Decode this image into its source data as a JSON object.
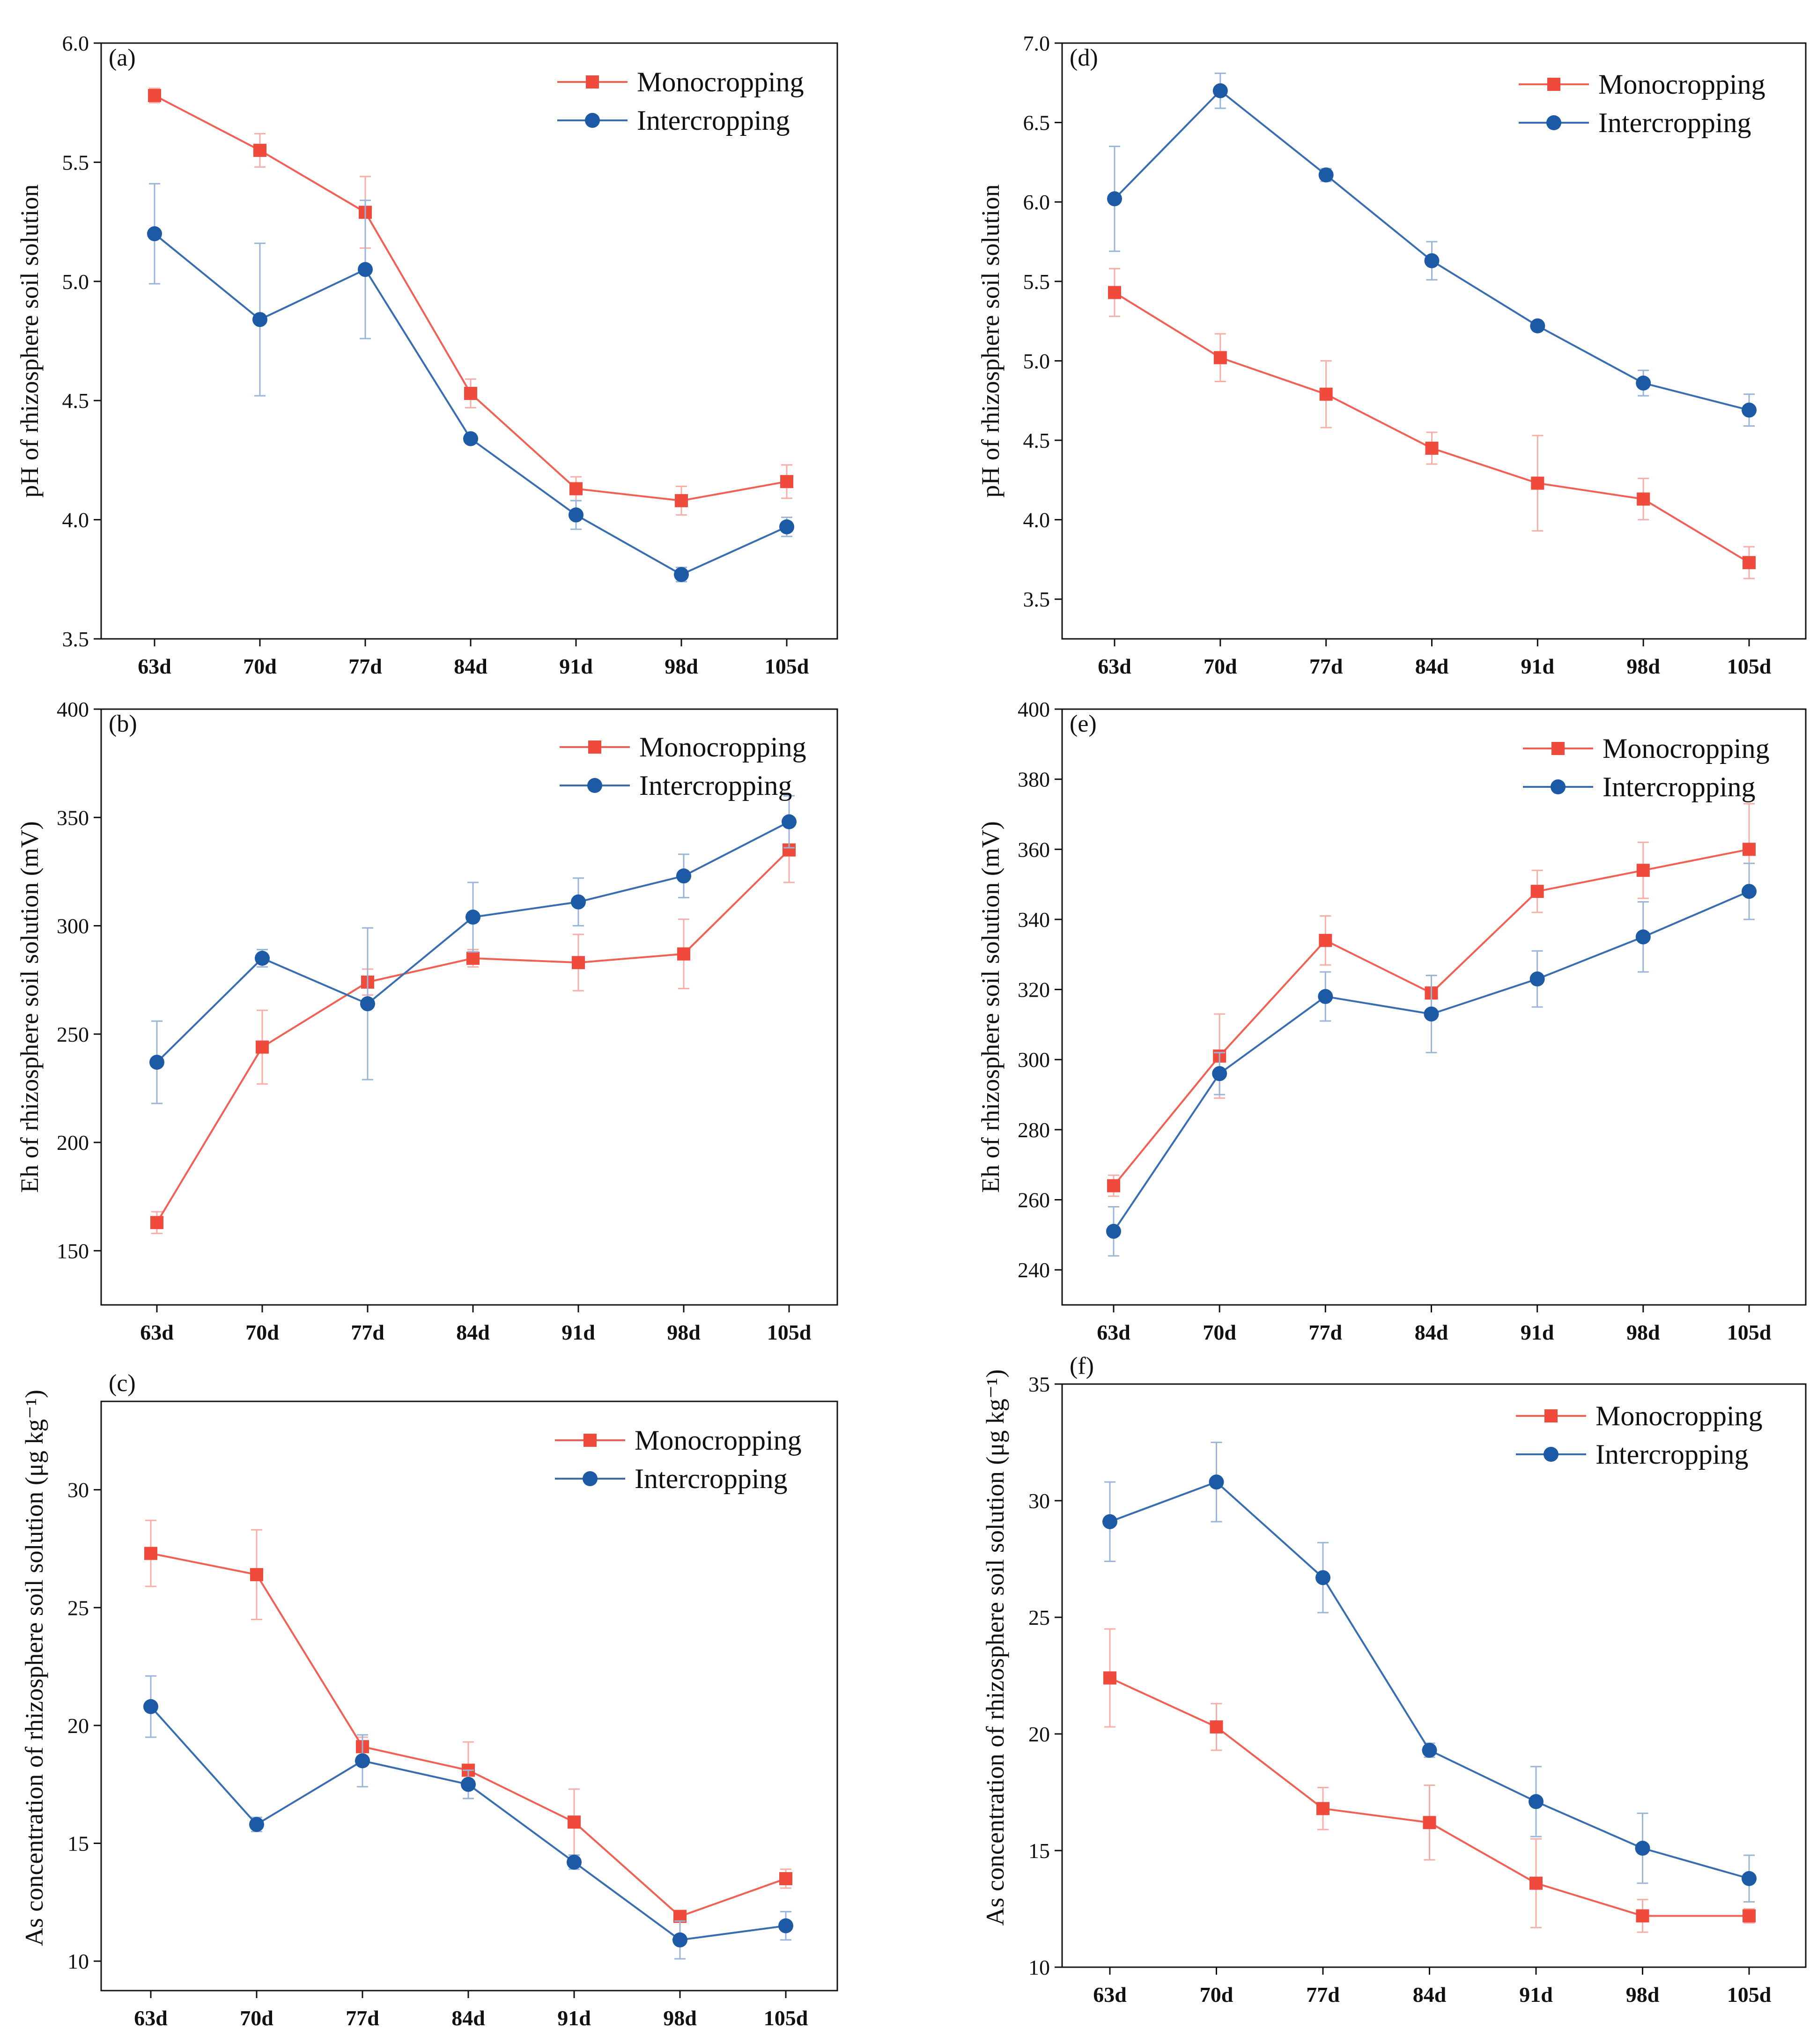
{
  "colors": {
    "monocropping": "#ef4a3c",
    "intercropping": "#1d5aa6",
    "axis": "#111111"
  },
  "chart_data": [
    {
      "id": "a",
      "type": "line",
      "panel_label": "(a)",
      "ylabel": "pH of rhizosphere soil solution",
      "ylim": [
        3.5,
        6.0
      ],
      "yticks": [
        "3.5",
        "4.0",
        "4.5",
        "5.0",
        "5.5",
        "6.0"
      ],
      "categories": [
        "63d",
        "70d",
        "77d",
        "84d",
        "91d",
        "98d",
        "105d"
      ],
      "legend": "top-right",
      "series": [
        {
          "name": "Monocropping",
          "marker": "square",
          "color": "#ef4a3c",
          "values": [
            5.78,
            5.55,
            5.29,
            4.53,
            4.13,
            4.08,
            4.16
          ],
          "errors": [
            0.03,
            0.07,
            0.15,
            0.06,
            0.05,
            0.06,
            0.07
          ]
        },
        {
          "name": "Intercropping",
          "marker": "circle",
          "color": "#1d5aa6",
          "values": [
            5.2,
            4.84,
            5.05,
            4.34,
            4.02,
            3.77,
            3.97
          ],
          "errors": [
            0.21,
            0.32,
            0.29,
            0.02,
            0.06,
            0.03,
            0.04
          ]
        }
      ]
    },
    {
      "id": "b",
      "type": "line",
      "panel_label": "(b)",
      "ylabel": "Eh of rhizosphere soil solution (mV)",
      "ylim": [
        125,
        400
      ],
      "yticks": [
        "150",
        "200",
        "250",
        "300",
        "350",
        "400"
      ],
      "categories": [
        "63d",
        "70d",
        "77d",
        "84d",
        "91d",
        "98d",
        "105d"
      ],
      "legend": "top-right",
      "series": [
        {
          "name": "Monocropping",
          "marker": "square",
          "color": "#ef4a3c",
          "values": [
            163,
            244,
            274,
            285,
            283,
            287,
            335
          ],
          "errors": [
            5,
            17,
            6,
            4,
            13,
            16,
            15
          ]
        },
        {
          "name": "Intercropping",
          "marker": "circle",
          "color": "#1d5aa6",
          "values": [
            237,
            285,
            264,
            304,
            311,
            323,
            348
          ],
          "errors": [
            19,
            4,
            35,
            16,
            11,
            10,
            12
          ]
        }
      ]
    },
    {
      "id": "c",
      "type": "line",
      "panel_label": "(c)",
      "ylabel": "As concentration of rhizosphere soil solution (μg kg⁻¹)",
      "ylim": [
        8.75,
        33.75
      ],
      "yticks": [
        "10",
        "15",
        "20",
        "25",
        "30"
      ],
      "categories": [
        "63d",
        "70d",
        "77d",
        "84d",
        "91d",
        "98d",
        "105d"
      ],
      "legend": "top-right",
      "series": [
        {
          "name": "Monocropping",
          "marker": "square",
          "color": "#ef4a3c",
          "values": [
            27.3,
            26.4,
            19.1,
            18.1,
            15.9,
            11.9,
            13.5
          ],
          "errors": [
            1.4,
            1.9,
            0.4,
            1.2,
            1.4,
            0.2,
            0.4
          ]
        },
        {
          "name": "Intercropping",
          "marker": "circle",
          "color": "#1d5aa6",
          "values": [
            20.8,
            15.8,
            18.5,
            17.5,
            14.2,
            10.9,
            11.5
          ],
          "errors": [
            1.3,
            0.3,
            1.1,
            0.6,
            0.3,
            0.8,
            0.6
          ]
        }
      ]
    },
    {
      "id": "d",
      "type": "line",
      "panel_label": "(d)",
      "ylabel": "pH of rhizosphere soil solution",
      "ylim": [
        3.25,
        7.0
      ],
      "yticks": [
        "3.5",
        "4.0",
        "4.5",
        "5.0",
        "5.5",
        "6.0",
        "6.5",
        "7.0"
      ],
      "categories": [
        "63d",
        "70d",
        "77d",
        "84d",
        "91d",
        "98d",
        "105d"
      ],
      "legend": "top-right",
      "series": [
        {
          "name": "Monocropping",
          "marker": "square",
          "color": "#ef4a3c",
          "values": [
            5.43,
            5.02,
            4.79,
            4.45,
            4.23,
            4.13,
            3.73
          ],
          "errors": [
            0.15,
            0.15,
            0.21,
            0.1,
            0.3,
            0.13,
            0.1
          ]
        },
        {
          "name": "Intercropping",
          "marker": "circle",
          "color": "#1d5aa6",
          "values": [
            6.02,
            6.7,
            6.17,
            5.63,
            5.22,
            4.86,
            4.69
          ],
          "errors": [
            0.33,
            0.11,
            0.04,
            0.12,
            0.02,
            0.08,
            0.1
          ]
        }
      ]
    },
    {
      "id": "e",
      "type": "line",
      "panel_label": "(e)",
      "ylabel": "Eh of rhizosphere soil solution (mV)",
      "ylim": [
        230,
        400
      ],
      "yticks": [
        "240",
        "260",
        "280",
        "300",
        "320",
        "340",
        "360",
        "380",
        "400"
      ],
      "categories": [
        "63d",
        "70d",
        "77d",
        "84d",
        "91d",
        "98d",
        "105d"
      ],
      "legend": "top-right",
      "series": [
        {
          "name": "Monocropping",
          "marker": "square",
          "color": "#ef4a3c",
          "values": [
            264,
            301,
            334,
            319,
            348,
            354,
            360
          ],
          "errors": [
            3,
            12,
            7,
            5,
            6,
            8,
            13
          ]
        },
        {
          "name": "Intercropping",
          "marker": "circle",
          "color": "#1d5aa6",
          "values": [
            251,
            296,
            318,
            313,
            323,
            335,
            348
          ],
          "errors": [
            7,
            6,
            7,
            11,
            8,
            10,
            8
          ]
        }
      ]
    },
    {
      "id": "f",
      "type": "line",
      "panel_label": "(f)",
      "ylabel": "As concentration of rhizosphere soil solution (μg kg⁻¹)",
      "ylim": [
        10,
        35
      ],
      "yticks": [
        "10",
        "15",
        "20",
        "25",
        "30",
        "35"
      ],
      "categories": [
        "63d",
        "70d",
        "77d",
        "84d",
        "91d",
        "98d",
        "105d"
      ],
      "legend": "top-right",
      "series": [
        {
          "name": "Monocropping",
          "marker": "square",
          "color": "#ef4a3c",
          "values": [
            22.4,
            20.3,
            16.8,
            16.2,
            13.6,
            12.2,
            12.2
          ],
          "errors": [
            2.1,
            1.0,
            0.9,
            1.6,
            1.9,
            0.7,
            0.3
          ]
        },
        {
          "name": "Intercropping",
          "marker": "circle",
          "color": "#1d5aa6",
          "values": [
            29.1,
            30.8,
            26.7,
            19.3,
            17.1,
            15.1,
            13.8
          ],
          "errors": [
            1.7,
            1.7,
            1.5,
            0.3,
            1.5,
            1.5,
            1.0
          ]
        }
      ]
    }
  ]
}
